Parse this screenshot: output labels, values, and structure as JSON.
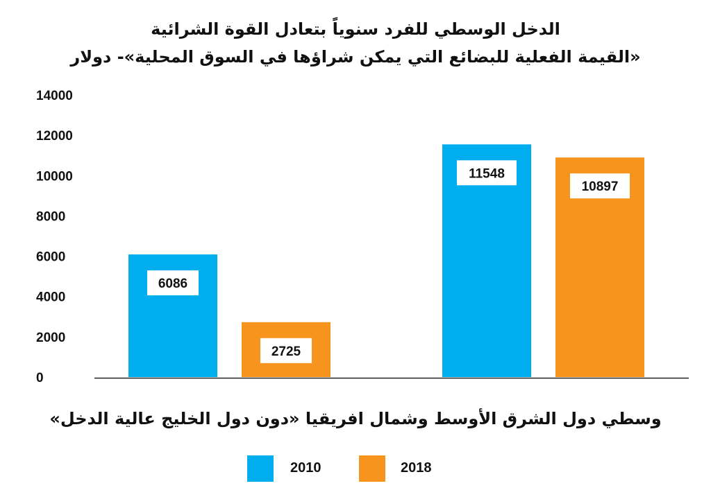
{
  "chart_data": {
    "type": "bar",
    "title": "الدخل الوسطي للفرد سنوياً بتعادل القوة الشرائية",
    "subtitle": "«القيمة الفعلية للبضائع التي يمكن شراؤها في السوق المحلية»- دولار",
    "categories": [
      "",
      ""
    ],
    "category_caption": "وسطي دول الشرق الأوسط وشمال افريقيا «دون دول الخليج عالية الدخل»",
    "series": [
      {
        "name": "2010",
        "color": "#00AEEF",
        "values": [
          6086,
          11548
        ]
      },
      {
        "name": "2018",
        "color": "#F7941D",
        "values": [
          2725,
          10897
        ]
      }
    ],
    "ylim": [
      0,
      14000
    ],
    "yticks": [
      "0",
      "2000",
      "4000",
      "6000",
      "8000",
      "10000",
      "12000",
      "14000"
    ],
    "xlabel": "",
    "ylabel": "",
    "grid": false,
    "legend_position": "bottom"
  }
}
